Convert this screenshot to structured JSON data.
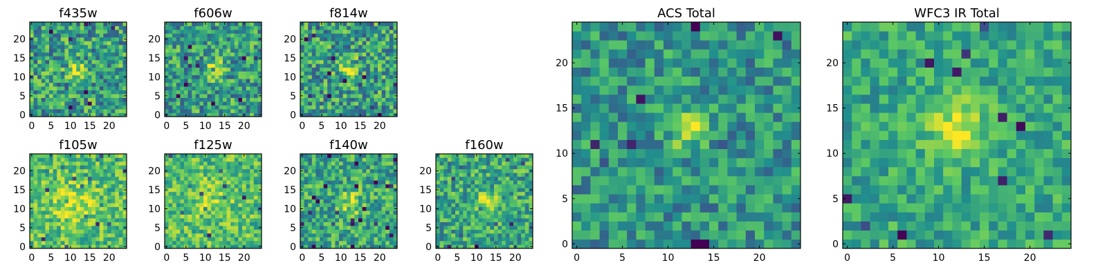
{
  "figure": {
    "colormap": "viridis",
    "colormap_stops": [
      "#440154",
      "#3b528b",
      "#21908d",
      "#5dc963",
      "#fde725"
    ]
  },
  "chart_data": [
    {
      "type": "heatmap",
      "title": "f435w",
      "grid_size": [
        25,
        25
      ],
      "xlim": [
        0,
        24
      ],
      "ylim": [
        0,
        24
      ],
      "xticks": [
        0,
        5,
        10,
        15,
        20
      ],
      "yticks": [
        0,
        5,
        10,
        15,
        20
      ],
      "peak": {
        "x": 11.5,
        "y": 11.5,
        "sigma": 1.6,
        "amp": 0.35
      },
      "noise": 0.3,
      "base": 0.56,
      "seed": 11
    },
    {
      "type": "heatmap",
      "title": "f606w",
      "grid_size": [
        25,
        25
      ],
      "xlim": [
        0,
        24
      ],
      "ylim": [
        0,
        24
      ],
      "xticks": [
        0,
        5,
        10,
        15,
        20
      ],
      "yticks": [
        0,
        5,
        10,
        15,
        20
      ],
      "peak": {
        "x": 12.5,
        "y": 12.0,
        "sigma": 1.6,
        "amp": 0.38
      },
      "noise": 0.28,
      "base": 0.56,
      "seed": 23
    },
    {
      "type": "heatmap",
      "title": "f814w",
      "grid_size": [
        25,
        25
      ],
      "xlim": [
        0,
        24
      ],
      "ylim": [
        0,
        24
      ],
      "xticks": [
        0,
        5,
        10,
        15,
        20
      ],
      "yticks": [
        0,
        5,
        10,
        15,
        20
      ],
      "peak": {
        "x": 12.0,
        "y": 12.0,
        "sigma": 1.8,
        "amp": 0.35
      },
      "noise": 0.3,
      "base": 0.56,
      "seed": 37
    },
    {
      "type": "heatmap",
      "title": "f105w",
      "grid_size": [
        25,
        25
      ],
      "xlim": [
        0,
        24
      ],
      "ylim": [
        0,
        24
      ],
      "xticks": [
        0,
        5,
        10,
        15,
        20
      ],
      "yticks": [
        0,
        5,
        10,
        15,
        20
      ],
      "peak": {
        "x": 11.0,
        "y": 11.0,
        "sigma": 4.0,
        "amp": 0.2
      },
      "noise": 0.22,
      "base": 0.7,
      "seed": 41
    },
    {
      "type": "heatmap",
      "title": "f125w",
      "grid_size": [
        25,
        25
      ],
      "xlim": [
        0,
        24
      ],
      "ylim": [
        0,
        24
      ],
      "xticks": [
        0,
        5,
        10,
        15,
        20
      ],
      "yticks": [
        0,
        5,
        10,
        15,
        20
      ],
      "peak": {
        "x": 12.0,
        "y": 12.0,
        "sigma": 4.0,
        "amp": 0.12
      },
      "noise": 0.22,
      "base": 0.7,
      "seed": 53
    },
    {
      "type": "heatmap",
      "title": "f140w",
      "grid_size": [
        25,
        25
      ],
      "xlim": [
        0,
        24
      ],
      "ylim": [
        0,
        24
      ],
      "xticks": [
        0,
        5,
        10,
        15,
        20
      ],
      "yticks": [
        0,
        5,
        10,
        15,
        20
      ],
      "peak": {
        "x": 12.5,
        "y": 11.5,
        "sigma": 2.0,
        "amp": 0.3
      },
      "noise": 0.25,
      "base": 0.6,
      "seed": 67
    },
    {
      "type": "heatmap",
      "title": "f160w",
      "grid_size": [
        25,
        25
      ],
      "xlim": [
        0,
        24
      ],
      "ylim": [
        0,
        24
      ],
      "xticks": [
        0,
        5,
        10,
        15,
        20
      ],
      "yticks": [
        0,
        5,
        10,
        15,
        20
      ],
      "peak": {
        "x": 12.5,
        "y": 12.0,
        "sigma": 1.8,
        "amp": 0.4
      },
      "noise": 0.25,
      "base": 0.6,
      "seed": 79
    },
    {
      "type": "heatmap",
      "title": "ACS Total",
      "grid_size": [
        25,
        25
      ],
      "xlim": [
        0,
        24
      ],
      "ylim": [
        0,
        24
      ],
      "xticks": [
        0,
        5,
        10,
        15,
        20
      ],
      "yticks": [
        0,
        5,
        10,
        15,
        20
      ],
      "peak": {
        "x": 12.0,
        "y": 12.5,
        "sigma": 1.3,
        "amp": 0.45
      },
      "noise": 0.22,
      "base": 0.52,
      "seed": 97
    },
    {
      "type": "heatmap",
      "title": "WFC3 IR Total",
      "grid_size": [
        25,
        25
      ],
      "xlim": [
        0,
        24
      ],
      "ylim": [
        0,
        24
      ],
      "xticks": [
        0,
        5,
        10,
        15,
        20
      ],
      "yticks": [
        0,
        5,
        10,
        15,
        20
      ],
      "peak": {
        "x": 12.0,
        "y": 12.5,
        "sigma": 2.2,
        "amp": 0.4
      },
      "noise": 0.18,
      "base": 0.6,
      "seed": 113
    }
  ]
}
